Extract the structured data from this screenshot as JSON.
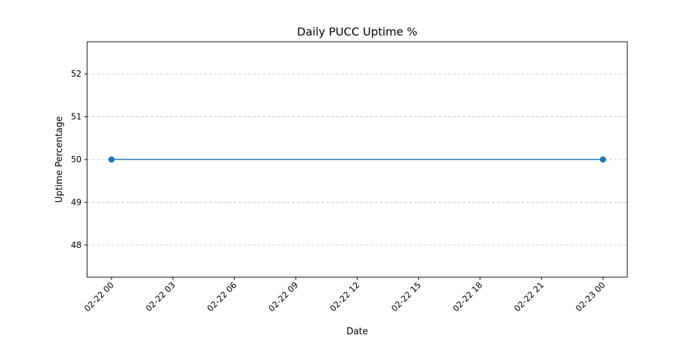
{
  "chart_data": {
    "type": "line",
    "title": "Daily PUCC Uptime %",
    "xlabel": "Date",
    "ylabel": "Uptime Percentage",
    "x": [
      "02-22 00",
      "02-23 00"
    ],
    "series": [
      {
        "values": [
          50,
          50
        ],
        "color": "#1f77b4",
        "marker": "circle"
      }
    ],
    "x_ticks": [
      "02-22 00",
      "02-22 03",
      "02-22 06",
      "02-22 09",
      "02-22 12",
      "02-22 15",
      "02-22 18",
      "02-22 21",
      "02-23 00"
    ],
    "y_ticks": [
      48,
      49,
      50,
      51,
      52
    ],
    "ylim": [
      47.25,
      52.75
    ],
    "grid": "y-dashed"
  }
}
